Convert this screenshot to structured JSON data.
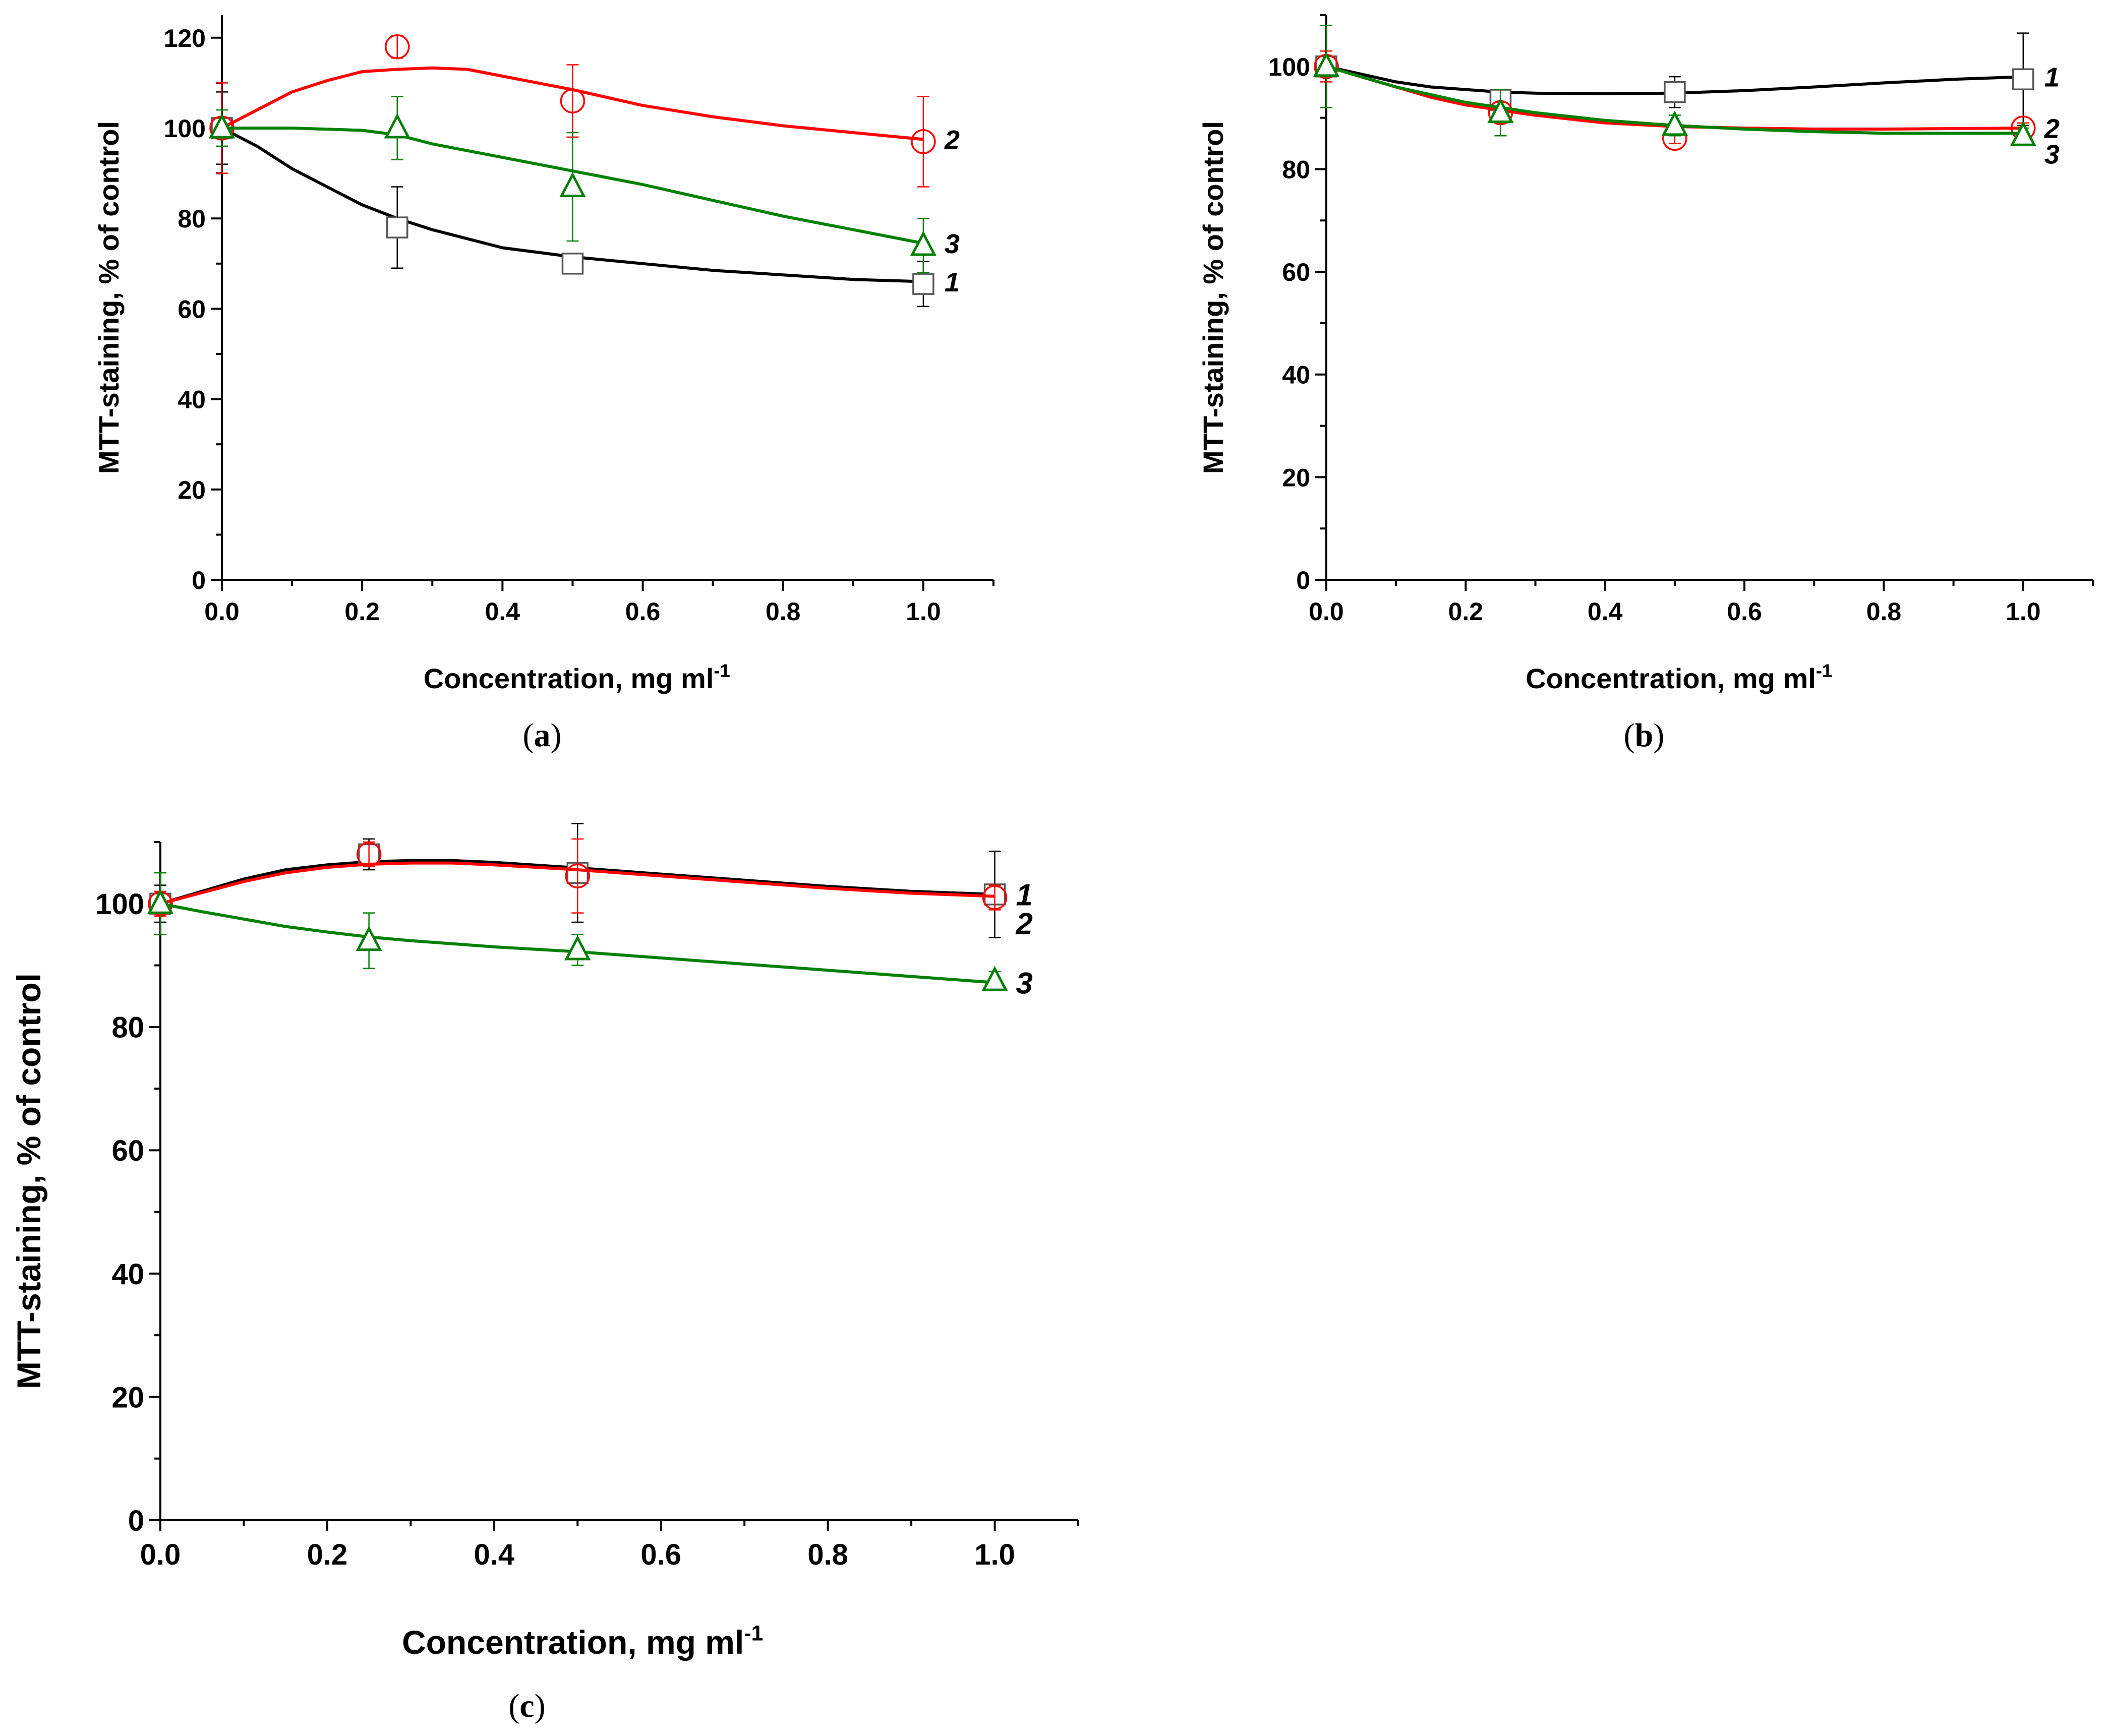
{
  "figure": {
    "captions": [
      "(a)",
      "(b)",
      "(c)"
    ]
  },
  "chart_data": [
    {
      "id": "a",
      "type": "line",
      "caption": "(a)",
      "xlabel": "Concentration, mg ml",
      "xlabel_sup": "-1",
      "ylabel": "MTT-staining, % of control",
      "xlim": [
        0,
        1.1
      ],
      "ylim": [
        0,
        125
      ],
      "ymax_frame": 125,
      "xticks": [
        0.0,
        0.2,
        0.4,
        0.6,
        0.8,
        1.0
      ],
      "xtick_labels": [
        "0.0",
        "0.2",
        "0.4",
        "0.6",
        "0.8",
        "1.0"
      ],
      "yticks": [
        0,
        20,
        40,
        60,
        80,
        100,
        120
      ],
      "ytick_labels": [
        "0",
        "20",
        "40",
        "60",
        "80",
        "100",
        "120"
      ],
      "series": [
        {
          "name": "1",
          "label": "1",
          "color": "#000000",
          "marker": "square",
          "x": [
            0,
            0.25,
            0.5,
            1.0
          ],
          "y": [
            100,
            78,
            70,
            65.5
          ],
          "err": [
            8,
            9,
            2,
            5
          ],
          "curve": [
            [
              0,
              100
            ],
            [
              0.05,
              96
            ],
            [
              0.1,
              91
            ],
            [
              0.15,
              87
            ],
            [
              0.2,
              83
            ],
            [
              0.25,
              80
            ],
            [
              0.3,
              77.5
            ],
            [
              0.35,
              75.5
            ],
            [
              0.4,
              73.5
            ],
            [
              0.45,
              72.5
            ],
            [
              0.5,
              71.5
            ],
            [
              0.6,
              70
            ],
            [
              0.7,
              68.5
            ],
            [
              0.8,
              67.5
            ],
            [
              0.9,
              66.5
            ],
            [
              1.0,
              66
            ]
          ]
        },
        {
          "name": "2",
          "label": "2",
          "color": "#ff0000",
          "marker": "circle",
          "x": [
            0,
            0.25,
            0.5,
            1.0
          ],
          "y": [
            100,
            118,
            106,
            97
          ],
          "err": [
            10,
            2.5,
            8,
            10
          ],
          "curve": [
            [
              0,
              100
            ],
            [
              0.05,
              104
            ],
            [
              0.1,
              108
            ],
            [
              0.15,
              110.5
            ],
            [
              0.2,
              112.5
            ],
            [
              0.25,
              113
            ],
            [
              0.3,
              113.3
            ],
            [
              0.35,
              113
            ],
            [
              0.4,
              111.5
            ],
            [
              0.45,
              110
            ],
            [
              0.5,
              108.5
            ],
            [
              0.6,
              105
            ],
            [
              0.7,
              102.5
            ],
            [
              0.8,
              100.5
            ],
            [
              0.9,
              99
            ],
            [
              1.0,
              97.5
            ]
          ]
        },
        {
          "name": "3",
          "label": "3",
          "color": "#008000",
          "marker": "triangle",
          "x": [
            0,
            0.25,
            0.5,
            1.0
          ],
          "y": [
            100,
            100,
            87,
            74
          ],
          "err": [
            4,
            7,
            12,
            6
          ],
          "curve": [
            [
              0,
              100
            ],
            [
              0.1,
              100
            ],
            [
              0.2,
              99.5
            ],
            [
              0.25,
              98.5
            ],
            [
              0.3,
              96.5
            ],
            [
              0.4,
              93.5
            ],
            [
              0.5,
              90.5
            ],
            [
              0.6,
              87.5
            ],
            [
              0.7,
              84
            ],
            [
              0.8,
              80.5
            ],
            [
              0.9,
              77.5
            ],
            [
              1.0,
              74.5
            ]
          ]
        }
      ]
    },
    {
      "id": "b",
      "type": "line",
      "caption": "(b)",
      "xlabel": "Concentration, mg ml",
      "xlabel_sup": "-1",
      "ylabel": "MTT-staining, % of control",
      "xlim": [
        0,
        1.1
      ],
      "ylim": [
        0,
        110
      ],
      "ymax_frame": 110,
      "xticks": [
        0.0,
        0.2,
        0.4,
        0.6,
        0.8,
        1.0
      ],
      "xtick_labels": [
        "0.0",
        "0.2",
        "0.4",
        "0.6",
        "0.8",
        "1.0"
      ],
      "yticks": [
        0,
        20,
        40,
        60,
        80,
        100
      ],
      "ytick_labels": [
        "0",
        "20",
        "40",
        "60",
        "80",
        "100"
      ],
      "series": [
        {
          "name": "1",
          "label": "1",
          "color": "#000000",
          "marker": "square",
          "x": [
            0,
            0.25,
            0.5,
            1.0
          ],
          "y": [
            100,
            93.5,
            95,
            97.5
          ],
          "err": [
            8,
            2,
            3,
            9
          ],
          "curve": [
            [
              0,
              100
            ],
            [
              0.05,
              98.5
            ],
            [
              0.1,
              97
            ],
            [
              0.15,
              96
            ],
            [
              0.2,
              95.5
            ],
            [
              0.25,
              95
            ],
            [
              0.3,
              94.8
            ],
            [
              0.4,
              94.7
            ],
            [
              0.5,
              94.8
            ],
            [
              0.6,
              95.3
            ],
            [
              0.7,
              96
            ],
            [
              0.8,
              96.8
            ],
            [
              0.9,
              97.5
            ],
            [
              1.0,
              98
            ]
          ]
        },
        {
          "name": "2",
          "label": "2",
          "color": "#ff0000",
          "marker": "circle",
          "x": [
            0,
            0.25,
            0.5,
            1.0
          ],
          "y": [
            100,
            91,
            86,
            88
          ],
          "err": [
            3,
            2,
            1,
            1
          ],
          "curve": [
            [
              0,
              100
            ],
            [
              0.05,
              98
            ],
            [
              0.1,
              96
            ],
            [
              0.15,
              94
            ],
            [
              0.2,
              92.5
            ],
            [
              0.25,
              91.5
            ],
            [
              0.3,
              90.5
            ],
            [
              0.4,
              89
            ],
            [
              0.5,
              88.3
            ],
            [
              0.6,
              88
            ],
            [
              0.7,
              87.8
            ],
            [
              0.8,
              87.8
            ],
            [
              0.9,
              87.9
            ],
            [
              1.0,
              88
            ]
          ]
        },
        {
          "name": "3",
          "label": "3",
          "color": "#008000",
          "marker": "triangle",
          "x": [
            0,
            0.25,
            0.5,
            1.0
          ],
          "y": [
            100,
            91,
            88.5,
            86.5
          ],
          "err": [
            8,
            4.5,
            2,
            1.5
          ],
          "curve": [
            [
              0,
              100
            ],
            [
              0.05,
              98
            ],
            [
              0.1,
              96
            ],
            [
              0.15,
              94.5
            ],
            [
              0.2,
              93
            ],
            [
              0.25,
              92
            ],
            [
              0.3,
              91
            ],
            [
              0.4,
              89.5
            ],
            [
              0.5,
              88.5
            ],
            [
              0.6,
              87.8
            ],
            [
              0.7,
              87.3
            ],
            [
              0.8,
              87
            ],
            [
              0.9,
              87
            ],
            [
              1.0,
              87
            ]
          ]
        }
      ]
    },
    {
      "id": "c",
      "type": "line",
      "caption": "(c)",
      "xlabel": "Concentration, mg ml",
      "xlabel_sup": "-1",
      "ylabel": "MTT-staining, % of control",
      "xlim": [
        0,
        1.1
      ],
      "ylim": [
        0,
        110
      ],
      "ymax_frame": 110,
      "xticks": [
        0.0,
        0.2,
        0.4,
        0.6,
        0.8,
        1.0
      ],
      "xtick_labels": [
        "0.0",
        "0.2",
        "0.4",
        "0.6",
        "0.8",
        "1.0"
      ],
      "yticks": [
        0,
        20,
        40,
        60,
        80,
        100
      ],
      "ytick_labels": [
        "0",
        "20",
        "40",
        "60",
        "80",
        "100"
      ],
      "series": [
        {
          "name": "1",
          "label": "1",
          "color": "#000000",
          "marker": "square",
          "x": [
            0,
            0.25,
            0.5,
            1.0
          ],
          "y": [
            100,
            108,
            105,
            101.5
          ],
          "err": [
            3,
            2.5,
            8,
            7
          ],
          "curve": [
            [
              0,
              100
            ],
            [
              0.05,
              102
            ],
            [
              0.1,
              104
            ],
            [
              0.15,
              105.5
            ],
            [
              0.2,
              106.3
            ],
            [
              0.25,
              106.8
            ],
            [
              0.3,
              107
            ],
            [
              0.35,
              107
            ],
            [
              0.4,
              106.7
            ],
            [
              0.5,
              105.8
            ],
            [
              0.6,
              104.8
            ],
            [
              0.7,
              103.8
            ],
            [
              0.8,
              102.8
            ],
            [
              0.9,
              102
            ],
            [
              1.0,
              101.5
            ]
          ]
        },
        {
          "name": "2",
          "label": "2",
          "color": "#ff0000",
          "marker": "circle",
          "x": [
            0,
            0.25,
            0.5,
            1.0
          ],
          "y": [
            100,
            108,
            104.5,
            101
          ],
          "err": [
            2,
            2,
            6,
            2
          ],
          "curve": [
            [
              0,
              100
            ],
            [
              0.05,
              101.8
            ],
            [
              0.1,
              103.6
            ],
            [
              0.15,
              105
            ],
            [
              0.2,
              105.9
            ],
            [
              0.25,
              106.4
            ],
            [
              0.3,
              106.6
            ],
            [
              0.35,
              106.6
            ],
            [
              0.4,
              106.3
            ],
            [
              0.5,
              105.5
            ],
            [
              0.6,
              104.5
            ],
            [
              0.7,
              103.5
            ],
            [
              0.8,
              102.5
            ],
            [
              0.9,
              101.7
            ],
            [
              1.0,
              101.2
            ]
          ]
        },
        {
          "name": "3",
          "label": "3",
          "color": "#008000",
          "marker": "triangle",
          "x": [
            0,
            0.25,
            0.5,
            1.0
          ],
          "y": [
            100,
            94,
            92.5,
            87.5
          ],
          "err": [
            5,
            4.5,
            2.5,
            1.5
          ],
          "curve": [
            [
              0,
              100
            ],
            [
              0.05,
              98.7
            ],
            [
              0.1,
              97.5
            ],
            [
              0.15,
              96.3
            ],
            [
              0.2,
              95.4
            ],
            [
              0.25,
              94.6
            ],
            [
              0.3,
              94
            ],
            [
              0.4,
              93
            ],
            [
              0.5,
              92.2
            ],
            [
              0.6,
              91.2
            ],
            [
              0.7,
              90.2
            ],
            [
              0.8,
              89.2
            ],
            [
              0.9,
              88.2
            ],
            [
              1.0,
              87.2
            ]
          ]
        }
      ]
    }
  ]
}
